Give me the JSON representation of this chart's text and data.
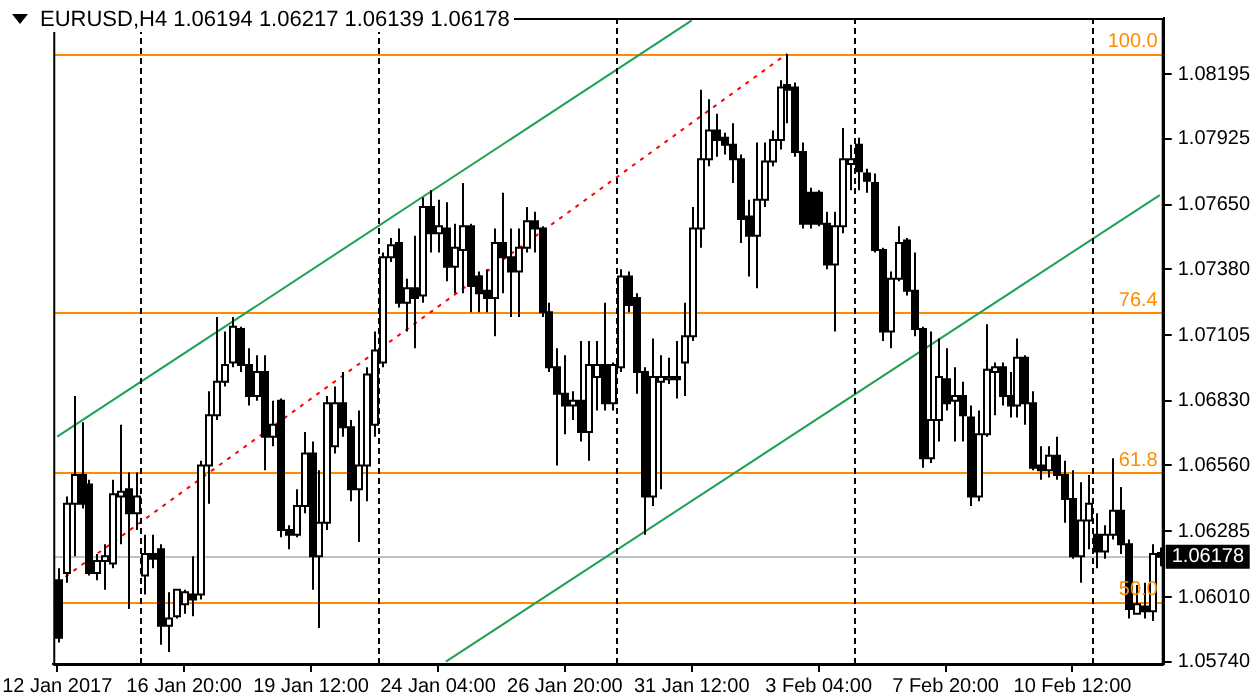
{
  "chart_data": {
    "type": "candlestick",
    "title": "EURUSD,H4 1.06194 1.06217 1.06139 1.06178",
    "color": "#000000",
    "colors": [
      "#000000",
      "#ffffff",
      "#ffffff",
      "#000000",
      "#000000",
      "#ffffff",
      "#ffffff",
      "#ffffff",
      "#ffffff",
      "#000000",
      "#ffffff",
      "#ffffff",
      "#000000",
      "#000000",
      "#ffffff",
      "#ffffff",
      "#ffffff",
      "#000000",
      "#ffffff",
      "#ffffff",
      "#ffffff",
      "#ffffff",
      "#ffffff",
      "#000000",
      "#000000",
      "#ffffff",
      "#000000",
      "#ffffff",
      "#000000",
      "#000000",
      "#ffffff",
      "#ffffff",
      "#000000",
      "#ffffff",
      "#ffffff",
      "#ffffff",
      "#000000",
      "#000000",
      "#ffffff",
      "#ffffff",
      "#ffffff",
      "#ffffff",
      "#ffffff",
      "#000000",
      "#ffffff",
      "#000000",
      "#ffffff",
      "#000000",
      "#ffffff",
      "#000000",
      "#ffffff",
      "#ffffff",
      "#000000",
      "#000000",
      "#000000",
      "#ffffff",
      "#000000",
      "#000000",
      "#ffffff",
      "#ffffff",
      "#000000",
      "#000000",
      "#000000",
      "#000000",
      "#000000",
      "#ffffff",
      "#000000",
      "#ffffff",
      "#ffffff",
      "#000000",
      "#ffffff",
      "#ffffff",
      "#000000",
      "#000000",
      "#000000",
      "#ffffff",
      "#ffffff",
      "#ffffff",
      "#000000",
      "#ffffff",
      "#ffffff",
      "#ffffff",
      "#ffffff",
      "#000000",
      "#000000",
      "#000000",
      "#000000",
      "#000000",
      "#ffffff",
      "#ffffff",
      "#ffffff",
      "#ffffff",
      "#000000",
      "#000000",
      "#000000",
      "#000000",
      "#000000",
      "#000000",
      "#ffffff",
      "#ffffff",
      "#ffffff",
      "#000000",
      "#000000",
      "#000000",
      "#000000",
      "#ffffff",
      "#ffffff",
      "#000000",
      "#000000",
      "#000000",
      "#ffffff",
      "#ffffff",
      "#000000",
      "#ffffff",
      "#000000",
      "#000000",
      "#ffffff",
      "#ffffff",
      "#ffffff",
      "#000000",
      "#000000",
      "#ffffff",
      "#000000",
      "#000000",
      "#000000",
      "#ffffff",
      "#000000",
      "#000000",
      "#000000",
      "#ffffff",
      "#ffffff",
      "#000000",
      "#ffffff",
      "#ffffff",
      "#000000",
      "#000000",
      "#ffffff",
      "#000000",
      "#ffffff",
      "#000000"
    ],
    "categories": [
      "12 Jan 2017",
      null,
      null,
      null,
      null,
      null,
      null,
      null,
      null,
      null,
      null,
      null,
      null,
      null,
      null,
      null,
      "16 Jan 20:00",
      null,
      null,
      null,
      null,
      null,
      null,
      null,
      null,
      null,
      null,
      null,
      null,
      null,
      null,
      null,
      "19 Jan 12:00",
      null,
      null,
      null,
      null,
      null,
      null,
      null,
      null,
      null,
      null,
      null,
      null,
      null,
      null,
      null,
      "24 Jan 04:00",
      null,
      null,
      null,
      null,
      null,
      null,
      null,
      null,
      null,
      null,
      null,
      null,
      null,
      null,
      null,
      "26 Jan 20:00",
      null,
      null,
      null,
      null,
      null,
      null,
      null,
      null,
      null,
      null,
      null,
      null,
      null,
      null,
      null,
      "31 Jan 12:00",
      null,
      null,
      null,
      null,
      null,
      null,
      null,
      null,
      null,
      null,
      null,
      null,
      null,
      null,
      null,
      "3 Feb 04:00",
      null,
      null,
      null,
      null,
      null,
      null,
      null,
      null,
      null,
      null,
      null,
      null,
      null,
      null,
      null,
      "7 Feb 20:00",
      null,
      null,
      null,
      null,
      null,
      null,
      null,
      null,
      null,
      null,
      null,
      null,
      null,
      null,
      null,
      "10 Feb 12:00",
      null,
      null,
      null,
      null,
      null,
      null,
      null,
      null,
      null,
      null,
      null
    ],
    "ohlc": [
      [
        1.0608,
        1.0613,
        1.0582,
        1.0584
      ],
      [
        1.0611,
        1.0643,
        1.0607,
        1.064
      ],
      [
        1.064,
        1.0685,
        1.0618,
        1.0652
      ],
      [
        1.0652,
        1.0674,
        1.0638,
        1.064
      ],
      [
        1.0648,
        1.065,
        1.061,
        1.0611
      ],
      [
        1.0611,
        1.0619,
        1.0608,
        1.0616
      ],
      [
        1.0616,
        1.0623,
        1.0604,
        1.0618
      ],
      [
        1.0615,
        1.065,
        1.0613,
        1.0644
      ],
      [
        1.0643,
        1.0673,
        1.0623,
        1.0645
      ],
      [
        1.0646,
        1.0653,
        1.0596,
        1.0636
      ],
      [
        1.0636,
        1.0653,
        1.0629,
        1.0643
      ],
      [
        1.061,
        1.0627,
        1.0602,
        1.0619
      ],
      [
        1.0619,
        1.0627,
        1.0613,
        1.0617
      ],
      [
        1.0621,
        1.0623,
        1.0581,
        1.0589
      ],
      [
        1.0589,
        1.0603,
        1.0578,
        1.0592
      ],
      [
        1.0593,
        1.0604,
        1.0592,
        1.0604
      ],
      [
        1.0598,
        1.0604,
        1.0594,
        1.0603
      ],
      [
        1.0602,
        1.0618,
        1.0593,
        1.06
      ],
      [
        1.0602,
        1.0658,
        1.06,
        1.0656
      ],
      [
        1.0656,
        1.0687,
        1.064,
        1.0677
      ],
      [
        1.0677,
        1.0718,
        1.0675,
        1.0691
      ],
      [
        1.0691,
        1.0712,
        1.0689,
        1.0698
      ],
      [
        1.0699,
        1.0718,
        1.0697,
        1.0714
      ],
      [
        1.0713,
        1.0714,
        1.0695,
        1.0698
      ],
      [
        1.0698,
        1.0705,
        1.0681,
        1.0685
      ],
      [
        1.0685,
        1.0702,
        1.0683,
        1.0695
      ],
      [
        1.0695,
        1.0702,
        1.0654,
        1.0668
      ],
      [
        1.0668,
        1.0683,
        1.0664,
        1.0673
      ],
      [
        1.0683,
        1.0684,
        1.0626,
        1.0629
      ],
      [
        1.0629,
        1.0631,
        1.0621,
        1.0627
      ],
      [
        1.0627,
        1.0646,
        1.0626,
        1.0639
      ],
      [
        1.0639,
        1.067,
        1.0636,
        1.0661
      ],
      [
        1.0661,
        1.0666,
        1.0604,
        1.0618
      ],
      [
        1.0618,
        1.0654,
        1.0588,
        1.0632
      ],
      [
        1.0632,
        1.0685,
        1.0629,
        1.0682
      ],
      [
        1.0664,
        1.0689,
        1.0661,
        1.0682
      ],
      [
        1.0682,
        1.0695,
        1.0668,
        1.0672
      ],
      [
        1.0672,
        1.0675,
        1.0641,
        1.0646
      ],
      [
        1.0646,
        1.0679,
        1.0624,
        1.0656
      ],
      [
        1.0656,
        1.0697,
        1.0641,
        1.0694
      ],
      [
        1.0673,
        1.0712,
        1.0668,
        1.0704
      ],
      [
        1.0699,
        1.0745,
        1.0697,
        1.0743
      ],
      [
        1.0743,
        1.0751,
        1.0741,
        1.0748
      ],
      [
        1.0749,
        1.0755,
        1.0722,
        1.0724
      ],
      [
        1.0724,
        1.0734,
        1.0712,
        1.073
      ],
      [
        1.073,
        1.0752,
        1.0705,
        1.0726
      ],
      [
        1.0727,
        1.0768,
        1.0724,
        1.0764
      ],
      [
        1.0764,
        1.0771,
        1.0745,
        1.0753
      ],
      [
        1.0753,
        1.0767,
        1.0745,
        1.0756
      ],
      [
        1.0755,
        1.0766,
        1.0733,
        1.0739
      ],
      [
        1.0739,
        1.0757,
        1.0728,
        1.0747
      ],
      [
        1.0746,
        1.0774,
        1.0728,
        1.0756
      ],
      [
        1.0756,
        1.0757,
        1.072,
        1.0731
      ],
      [
        1.0735,
        1.0737,
        1.072,
        1.0728
      ],
      [
        1.0729,
        1.0738,
        1.072,
        1.0726
      ],
      [
        1.0726,
        1.0755,
        1.071,
        1.0749
      ],
      [
        1.0749,
        1.077,
        1.0728,
        1.0743
      ],
      [
        1.0743,
        1.0755,
        1.0718,
        1.0737
      ],
      [
        1.0737,
        1.0755,
        1.0718,
        1.0747
      ],
      [
        1.0747,
        1.0764,
        1.0745,
        1.0758
      ],
      [
        1.0758,
        1.0762,
        1.0745,
        1.0755
      ],
      [
        1.0755,
        1.0756,
        1.0718,
        1.072
      ],
      [
        1.072,
        1.0724,
        1.0695,
        1.0697
      ],
      [
        1.0697,
        1.0705,
        1.0656,
        1.0686
      ],
      [
        1.0686,
        1.0702,
        1.0669,
        1.0681
      ],
      [
        1.0681,
        1.0687,
        1.0675,
        1.0683
      ],
      [
        1.0683,
        1.0708,
        1.0666,
        1.067
      ],
      [
        1.067,
        1.0708,
        1.0658,
        1.0698
      ],
      [
        1.0693,
        1.0708,
        1.0679,
        1.0698
      ],
      [
        1.0698,
        1.0724,
        1.0679,
        1.0682
      ],
      [
        1.0682,
        1.0699,
        1.0679,
        1.0698
      ],
      [
        1.0697,
        1.0738,
        1.0695,
        1.0735
      ],
      [
        1.0735,
        1.0737,
        1.072,
        1.0723
      ],
      [
        1.0726,
        1.0728,
        1.0686,
        1.0695
      ],
      [
        1.0695,
        1.0697,
        1.0627,
        1.0643
      ],
      [
        1.0643,
        1.0709,
        1.0639,
        1.0693
      ],
      [
        1.0691,
        1.0702,
        1.0646,
        1.0693
      ],
      [
        1.0692,
        1.0701,
        1.069,
        1.0693
      ],
      [
        1.0693,
        1.0708,
        1.0684,
        1.0692
      ],
      [
        1.0699,
        1.0724,
        1.0685,
        1.071
      ],
      [
        1.071,
        1.0764,
        1.0708,
        1.0755
      ],
      [
        1.0755,
        1.0813,
        1.0747,
        1.0784
      ],
      [
        1.0784,
        1.0809,
        1.0781,
        1.0796
      ],
      [
        1.0796,
        1.0803,
        1.0785,
        1.0792
      ],
      [
        1.0793,
        1.0795,
        1.0786,
        1.079
      ],
      [
        1.079,
        1.0799,
        1.0774,
        1.0784
      ],
      [
        1.0784,
        1.0786,
        1.0749,
        1.0759
      ],
      [
        1.076,
        1.0767,
        1.0735,
        1.0752
      ],
      [
        1.0752,
        1.0791,
        1.073,
        1.0767
      ],
      [
        1.0767,
        1.0791,
        1.0764,
        1.0783
      ],
      [
        1.0783,
        1.0796,
        1.0781,
        1.0792
      ],
      [
        1.0792,
        1.0817,
        1.0788,
        1.0814
      ],
      [
        1.0815,
        1.0828,
        1.0799,
        1.0813
      ],
      [
        1.0814,
        1.0816,
        1.0785,
        1.0787
      ],
      [
        1.0787,
        1.0791,
        1.0755,
        1.0757
      ],
      [
        1.077,
        1.0772,
        1.0755,
        1.0757
      ],
      [
        1.077,
        1.0771,
        1.0756,
        1.0757
      ],
      [
        1.0757,
        1.0762,
        1.0738,
        1.074
      ],
      [
        1.074,
        1.0762,
        1.0712,
        1.0756
      ],
      [
        1.0756,
        1.0797,
        1.0753,
        1.0784
      ],
      [
        1.0782,
        1.079,
        1.0771,
        1.0784
      ],
      [
        1.079,
        1.0793,
        1.0771,
        1.0779
      ],
      [
        1.0778,
        1.078,
        1.077,
        1.0775
      ],
      [
        1.0774,
        1.0778,
        1.0745,
        1.0746
      ],
      [
        1.0746,
        1.0747,
        1.0708,
        1.0712
      ],
      [
        1.0712,
        1.0737,
        1.0705,
        1.0734
      ],
      [
        1.0734,
        1.0756,
        1.0733,
        1.0749
      ],
      [
        1.075,
        1.0751,
        1.0727,
        1.0729
      ],
      [
        1.0729,
        1.0745,
        1.071,
        1.0713
      ],
      [
        1.0713,
        1.0714,
        1.0655,
        1.0659
      ],
      [
        1.0659,
        1.0712,
        1.0657,
        1.0675
      ],
      [
        1.0675,
        1.0709,
        1.0666,
        1.0693
      ],
      [
        1.0692,
        1.0705,
        1.0679,
        1.0682
      ],
      [
        1.0683,
        1.0697,
        1.0666,
        1.0685
      ],
      [
        1.0685,
        1.0691,
        1.0666,
        1.0677
      ],
      [
        1.0676,
        1.0681,
        1.0639,
        1.0643
      ],
      [
        1.0643,
        1.0679,
        1.0641,
        1.0669
      ],
      [
        1.0669,
        1.0715,
        1.0668,
        1.0696
      ],
      [
        1.0695,
        1.0699,
        1.0677,
        1.0697
      ],
      [
        1.0697,
        1.0699,
        1.0681,
        1.0685
      ],
      [
        1.0685,
        1.0695,
        1.0676,
        1.0681
      ],
      [
        1.0681,
        1.0709,
        1.0676,
        1.0701
      ],
      [
        1.0701,
        1.0702,
        1.0673,
        1.0682
      ],
      [
        1.0682,
        1.0687,
        1.0654,
        1.0655
      ],
      [
        1.0656,
        1.0664,
        1.065,
        1.0654
      ],
      [
        1.0654,
        1.0664,
        1.0651,
        1.066
      ],
      [
        1.066,
        1.0668,
        1.065,
        1.0652
      ],
      [
        1.0652,
        1.0658,
        1.0632,
        1.0642
      ],
      [
        1.0642,
        1.0654,
        1.0617,
        1.0618
      ],
      [
        1.0618,
        1.0649,
        1.0607,
        1.0633
      ],
      [
        1.0633,
        1.0652,
        1.0621,
        1.064
      ],
      [
        1.0627,
        1.0636,
        1.0613,
        1.062
      ],
      [
        1.062,
        1.0631,
        1.0617,
        1.0627
      ],
      [
        1.0627,
        1.0659,
        1.0625,
        1.0637
      ],
      [
        1.0637,
        1.0647,
        1.0619,
        1.0623
      ],
      [
        1.0623,
        1.0625,
        1.0592,
        1.0596
      ],
      [
        1.0594,
        1.0606,
        1.0594,
        1.0598
      ],
      [
        1.0597,
        1.0607,
        1.0592,
        1.0595
      ],
      [
        1.0595,
        1.0623,
        1.0591,
        1.0619
      ],
      [
        1.06194,
        1.06217,
        1.06139,
        1.06178
      ]
    ],
    "series": [
      {
        "type": "line",
        "color": "#1fa055",
        "line_style": "solid",
        "values": [
          1.0668,
          null,
          null,
          null,
          null,
          null,
          null,
          null,
          null,
          null,
          null,
          null,
          null,
          null,
          null,
          null,
          null,
          null,
          null,
          null,
          null,
          null,
          null,
          null,
          null,
          null,
          null,
          null,
          null,
          null,
          null,
          null,
          null,
          null,
          null,
          null,
          null,
          null,
          null,
          null,
          null,
          null,
          null,
          null,
          null,
          null,
          null,
          null,
          null,
          null,
          null,
          null,
          null,
          null,
          null,
          null,
          null,
          null,
          null,
          null,
          null,
          null,
          null,
          null,
          null,
          null,
          null,
          null,
          null,
          null,
          null,
          null,
          null,
          null,
          null,
          null,
          null,
          null,
          null,
          null,
          1.0842,
          null,
          null,
          null,
          null,
          null,
          null,
          null,
          null,
          null,
          null,
          null,
          null,
          null,
          null,
          null,
          null,
          null,
          null,
          null,
          null,
          null,
          null,
          null,
          null,
          null,
          null,
          null,
          null,
          null,
          null,
          null,
          null,
          null,
          null,
          null,
          null,
          null,
          null,
          null,
          null,
          null,
          null,
          null,
          null,
          null,
          null,
          null,
          null,
          null,
          null,
          null,
          null,
          null,
          null,
          null,
          null,
          null,
          null,
          null
        ]
      },
      {
        "type": "line",
        "color": "#1fa055",
        "line_style": "solid",
        "values": [
          null,
          null,
          null,
          null,
          null,
          null,
          null,
          null,
          null,
          null,
          null,
          null,
          null,
          null,
          null,
          null,
          null,
          null,
          null,
          null,
          null,
          null,
          null,
          null,
          null,
          null,
          null,
          null,
          null,
          null,
          null,
          null,
          null,
          null,
          null,
          null,
          null,
          null,
          null,
          null,
          null,
          null,
          null,
          null,
          null,
          null,
          null,
          null,
          null,
          1.0574,
          null,
          null,
          null,
          null,
          null,
          null,
          null,
          null,
          null,
          null,
          null,
          null,
          null,
          null,
          null,
          null,
          null,
          null,
          null,
          null,
          null,
          null,
          null,
          null,
          null,
          null,
          null,
          null,
          null,
          null,
          null,
          null,
          null,
          null,
          null,
          null,
          null,
          null,
          null,
          null,
          null,
          null,
          null,
          null,
          null,
          null,
          null,
          null,
          null,
          null,
          null,
          null,
          null,
          null,
          null,
          null,
          null,
          null,
          null,
          null,
          null,
          null,
          null,
          null,
          null,
          null,
          null,
          null,
          null,
          null,
          null,
          null,
          null,
          null,
          null,
          null,
          null,
          null,
          null,
          null,
          null,
          null,
          null,
          null,
          null,
          null,
          null,
          null,
          null,
          1.0769
        ]
      },
      {
        "type": "line",
        "color": "#ff0000",
        "line_style": "dotted",
        "values": [
          1.0607,
          null,
          null,
          null,
          null,
          null,
          null,
          null,
          null,
          null,
          null,
          null,
          null,
          null,
          null,
          null,
          null,
          null,
          null,
          null,
          null,
          null,
          null,
          null,
          null,
          null,
          null,
          null,
          null,
          null,
          null,
          null,
          null,
          null,
          null,
          null,
          null,
          null,
          null,
          null,
          null,
          null,
          null,
          null,
          null,
          null,
          null,
          null,
          null,
          null,
          null,
          null,
          null,
          null,
          null,
          null,
          null,
          null,
          null,
          null,
          null,
          null,
          null,
          null,
          null,
          null,
          null,
          null,
          null,
          null,
          null,
          null,
          null,
          null,
          null,
          null,
          null,
          null,
          null,
          null,
          null,
          null,
          null,
          null,
          null,
          null,
          null,
          null,
          null,
          null,
          null,
          null,
          1.0828,
          null,
          null,
          null,
          null,
          null,
          null,
          null,
          null,
          null,
          null,
          null,
          null,
          null,
          null,
          null,
          null,
          null,
          null,
          null,
          null,
          null,
          null,
          null,
          null,
          null,
          null,
          null,
          null,
          null,
          null,
          null,
          null,
          null,
          null,
          null,
          null,
          null,
          null,
          null,
          null,
          null,
          null,
          null,
          null,
          null,
          null,
          null
        ]
      }
    ],
    "ylim": [
      1.0573,
      1.0843
    ],
    "yticks": [
      {
        "value": 1.08195,
        "label": "1.08195"
      },
      {
        "value": 1.07925,
        "label": "1.07925"
      },
      {
        "value": 1.0765,
        "label": "1.07650"
      },
      {
        "value": 1.0738,
        "label": "1.07380"
      },
      {
        "value": 1.07105,
        "label": "1.07105"
      },
      {
        "value": 1.0683,
        "label": "1.06830"
      },
      {
        "value": 1.0656,
        "label": "1.06560"
      },
      {
        "value": 1.06285,
        "label": "1.06285"
      },
      {
        "value": 1.0601,
        "label": "1.06010"
      },
      {
        "value": 1.0574,
        "label": "1.05740"
      }
    ],
    "ref_lines": [
      {
        "axis": "y",
        "value": 1.0828,
        "color": "#ff8c00"
      },
      {
        "axis": "y",
        "value": 1.072,
        "color": "#ff8c00"
      },
      {
        "axis": "y",
        "value": 1.0653,
        "color": "#ff8c00"
      },
      {
        "axis": "y",
        "value": 1.0599,
        "color": "#ff8c00"
      },
      {
        "axis": "y",
        "value": 1.06178,
        "label": "1.06178",
        "color": "#c0c0c0"
      }
    ],
    "annotations": [
      {
        "text": "100.0",
        "y": 1.0828
      },
      {
        "text": "76.4",
        "y": 1.072
      },
      {
        "text": "61.8",
        "y": 1.0653
      },
      {
        "text": "50.0",
        "y": 1.0599
      }
    ],
    "grid": false
  }
}
